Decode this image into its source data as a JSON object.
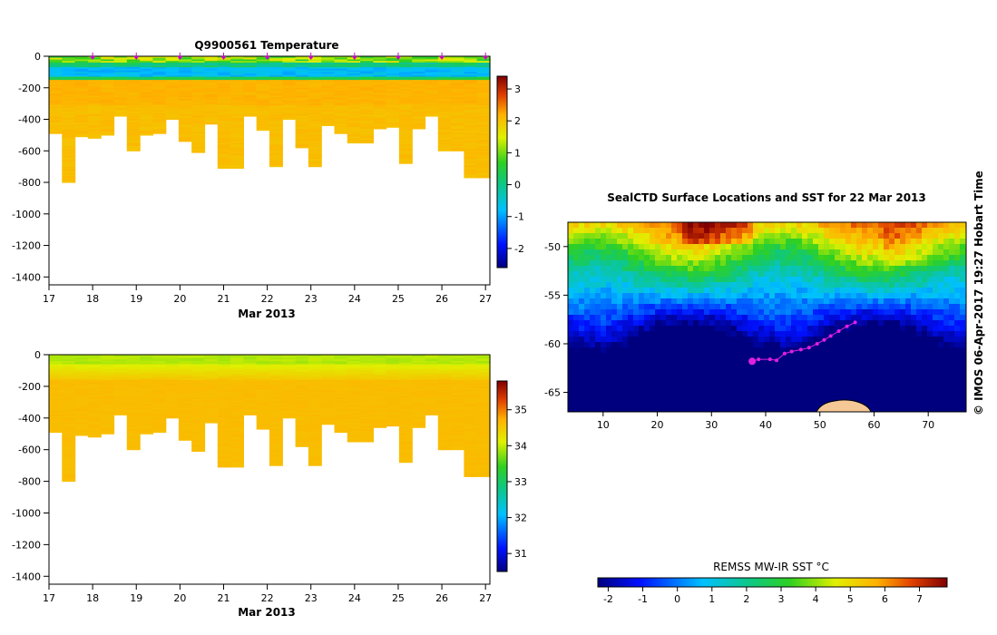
{
  "chart_data": [
    {
      "type": "heatmap",
      "title": "Q9900561  Temperature",
      "xlabel": "Mar 2013",
      "ylabel": "",
      "x_ticks": [
        "17",
        "18",
        "19",
        "20",
        "21",
        "22",
        "23",
        "24",
        "25",
        "26",
        "27"
      ],
      "y_ticks": [
        "0",
        "-200",
        "-400",
        "-600",
        "-800",
        "-1000",
        "-1200",
        "-1400"
      ],
      "xlim": [
        17,
        27.1
      ],
      "ylim": [
        -1450,
        0
      ],
      "colorbar": {
        "min": -2.6,
        "max": 3.4,
        "ticks": [
          "3",
          "2",
          "1",
          "0",
          "-1",
          "-2"
        ]
      },
      "profile_max_depths": [
        -490,
        -800,
        -510,
        -520,
        -500,
        -380,
        -600,
        -500,
        -490,
        -400,
        -540,
        -610,
        -430,
        -710,
        -710,
        -380,
        -470,
        -700,
        -400,
        -580,
        -700,
        -440,
        -490,
        -550,
        -550,
        -460,
        -450,
        -680,
        -460,
        -380,
        -600,
        -600,
        -770,
        -770
      ],
      "surface_markers_days": [
        18,
        19,
        20,
        21,
        22,
        23,
        24,
        25,
        26,
        27
      ]
    },
    {
      "type": "heatmap",
      "title": "",
      "xlabel": "Mar 2013",
      "ylabel": "",
      "x_ticks": [
        "17",
        "18",
        "19",
        "20",
        "21",
        "22",
        "23",
        "24",
        "25",
        "26",
        "27"
      ],
      "y_ticks": [
        "0",
        "-200",
        "-400",
        "-600",
        "-800",
        "-1000",
        "-1200",
        "-1400"
      ],
      "xlim": [
        17,
        27.1
      ],
      "ylim": [
        -1450,
        0
      ],
      "colorbar": {
        "min": 30.5,
        "max": 35.8,
        "ticks": [
          "35",
          "34",
          "33",
          "32",
          "31"
        ]
      },
      "profile_max_depths": [
        -490,
        -800,
        -510,
        -520,
        -500,
        -380,
        -600,
        -500,
        -490,
        -400,
        -540,
        -610,
        -430,
        -710,
        -710,
        -380,
        -470,
        -700,
        -400,
        -580,
        -700,
        -440,
        -490,
        -550,
        -550,
        -460,
        -450,
        -680,
        -460,
        -380,
        -600,
        -600,
        -770,
        -770
      ]
    },
    {
      "type": "heatmap",
      "title": "SealCTD Surface Locations and SST for 22 Mar 2013",
      "xlabel": "",
      "ylabel": "",
      "x_ticks": [
        "10",
        "20",
        "30",
        "40",
        "50",
        "60",
        "70"
      ],
      "y_ticks": [
        "-50",
        "-55",
        "-60",
        "-65"
      ],
      "xlim": [
        3.5,
        77
      ],
      "ylim": [
        -67,
        -47.5
      ],
      "track_points": [
        [
          37.5,
          -61.8
        ],
        [
          38.7,
          -61.6
        ],
        [
          40.8,
          -61.6
        ],
        [
          42.0,
          -61.7
        ],
        [
          43.5,
          -61.0
        ],
        [
          44.8,
          -60.8
        ],
        [
          46.5,
          -60.6
        ],
        [
          48.0,
          -60.4
        ],
        [
          49.5,
          -60.0
        ],
        [
          50.8,
          -59.6
        ],
        [
          52.0,
          -59.2
        ],
        [
          53.5,
          -58.7
        ],
        [
          55.0,
          -58.2
        ],
        [
          56.5,
          -57.8
        ]
      ],
      "colorbar_label": "REMSS MW-IR SST °C",
      "colorbar": {
        "min": -2.3,
        "max": 7.8,
        "ticks": [
          "-2",
          "-1",
          "0",
          "1",
          "2",
          "3",
          "4",
          "5",
          "6",
          "7"
        ]
      }
    }
  ],
  "credit": "©  IMOS 06-Apr-2017 19:27 Hobart Time"
}
